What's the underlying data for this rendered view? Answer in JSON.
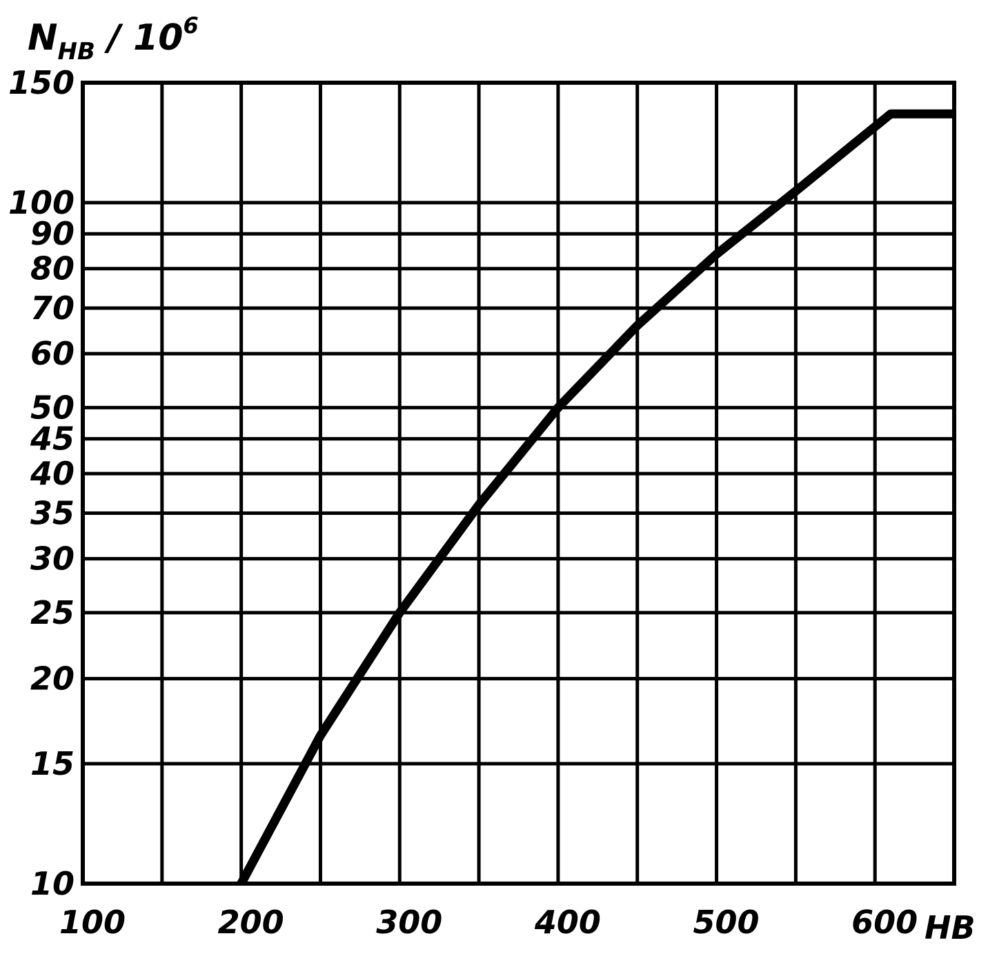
{
  "chart_data": {
    "type": "line",
    "title": "",
    "ylabel": {
      "main": "N",
      "subscript": "HB",
      "suffix": " / 10",
      "superscript": "6"
    },
    "xlabel_unit": "HB",
    "x_ticks": [
      "100",
      "200",
      "300",
      "400",
      "500",
      "600"
    ],
    "x_tick_values": [
      100,
      200,
      300,
      400,
      500,
      600
    ],
    "y_ticks": [
      "10",
      "15",
      "20",
      "25",
      "30",
      "35",
      "40",
      "45",
      "50",
      "60",
      "70",
      "80",
      "90",
      "100",
      "150"
    ],
    "y_tick_values": [
      10,
      15,
      20,
      25,
      30,
      35,
      40,
      45,
      50,
      60,
      70,
      80,
      90,
      100,
      150
    ],
    "y_scale": "log",
    "xlim": [
      100,
      650
    ],
    "ylim": [
      10,
      150
    ],
    "grid": true,
    "series": [
      {
        "x": [
          200,
          250,
          300,
          350,
          400,
          450,
          500,
          550,
          610,
          650
        ],
        "y": [
          10,
          16.5,
          25,
          36,
          50,
          66,
          84,
          104,
          135,
          135
        ]
      }
    ],
    "colors": {
      "line": "#000000",
      "grid": "#000000",
      "background": "#ffffff"
    }
  }
}
